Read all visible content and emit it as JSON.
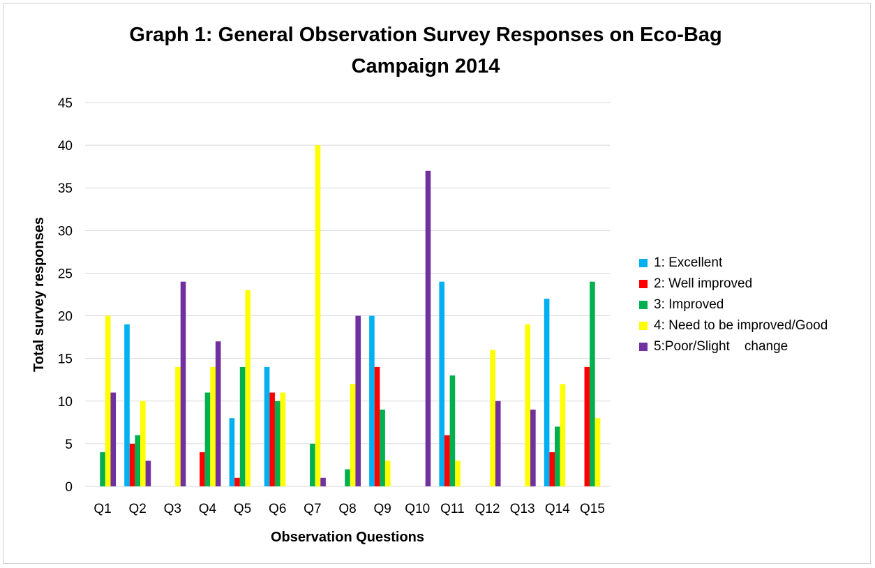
{
  "chart_data": {
    "type": "bar",
    "title_line1": "Graph 1: General Observation Survey Responses on Eco-Bag",
    "title_line2": "Campaign 2014",
    "xlabel": "Observation Questions",
    "ylabel": "Total survey responses",
    "ylim": [
      0,
      45
    ],
    "yticks": [
      0,
      5,
      10,
      15,
      20,
      25,
      30,
      35,
      40,
      45
    ],
    "grid": true,
    "legend_position": "right",
    "categories": [
      "Q1",
      "Q2",
      "Q3",
      "Q4",
      "Q5",
      "Q6",
      "Q7",
      "Q8",
      "Q9",
      "Q10",
      "Q11",
      "Q12",
      "Q13",
      "Q14",
      "Q15"
    ],
    "series": [
      {
        "name": "1: Excellent",
        "color": "#00b0f0",
        "values": [
          0,
          19,
          0,
          0,
          8,
          14,
          0,
          0,
          20,
          0,
          24,
          0,
          0,
          22,
          0
        ]
      },
      {
        "name": "2: Well improved",
        "color": "#ff0000",
        "values": [
          0,
          5,
          0,
          4,
          1,
          11,
          0,
          0,
          14,
          0,
          6,
          0,
          0,
          4,
          14
        ]
      },
      {
        "name": "3: Improved",
        "color": "#00b050",
        "values": [
          4,
          6,
          0,
          11,
          14,
          10,
          5,
          2,
          9,
          0,
          13,
          0,
          0,
          7,
          24
        ]
      },
      {
        "name": "4: Need to be improved/Good",
        "color": "#ffff00",
        "values": [
          20,
          10,
          14,
          14,
          23,
          11,
          40,
          12,
          3,
          0,
          3,
          16,
          19,
          12,
          8
        ]
      },
      {
        "name": "5:Poor/Slight    change",
        "color": "#7030a0",
        "values": [
          11,
          3,
          24,
          17,
          0,
          0,
          1,
          20,
          0,
          37,
          0,
          10,
          9,
          0,
          0
        ]
      }
    ]
  }
}
